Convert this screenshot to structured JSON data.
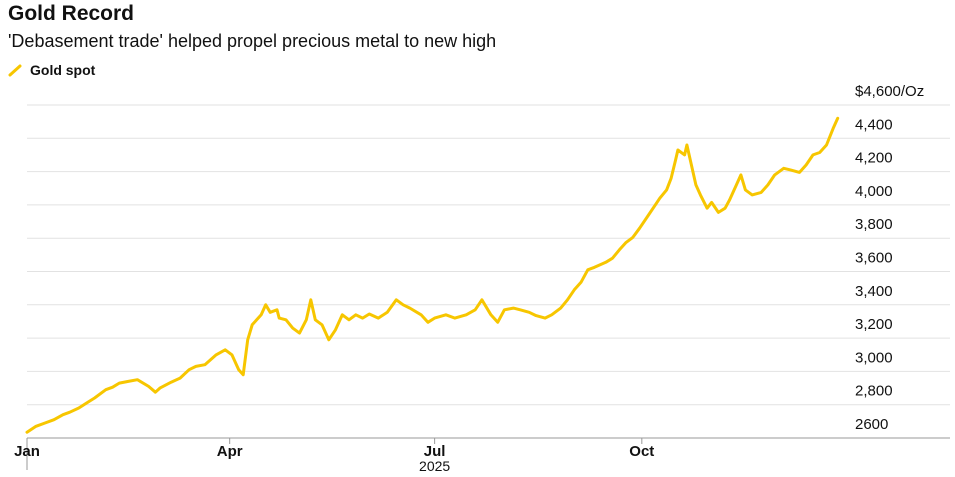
{
  "chart_data": {
    "type": "line",
    "title": "Gold Record",
    "subtitle": "'Debasement trade' helped propel precious metal to new high",
    "x_label": "2025",
    "xlim": [
      1,
      362
    ],
    "xticks": [
      {
        "value": 1,
        "label": "Jan"
      },
      {
        "value": 91,
        "label": "Apr"
      },
      {
        "value": 182,
        "label": "Jul"
      },
      {
        "value": 274,
        "label": "Oct"
      }
    ],
    "ylim": [
      2600,
      4600
    ],
    "yticks": [
      2600,
      {
        "value": 2800,
        "label": "2,800"
      },
      {
        "value": 3000,
        "label": "3,000"
      },
      {
        "value": 3200,
        "label": "3,200"
      },
      {
        "value": 3400,
        "label": "3,400"
      },
      {
        "value": 3600,
        "label": "3,600"
      },
      {
        "value": 3800,
        "label": "3,800"
      },
      {
        "value": 4000,
        "label": "4,000"
      },
      {
        "value": 4200,
        "label": "4,200"
      },
      {
        "value": 4400,
        "label": "4,400"
      },
      {
        "value": 4600,
        "label": "$4,600/Oz"
      }
    ],
    "grid": true,
    "legend": "top-left",
    "series": [
      {
        "name": "Gold spot",
        "color": "#f7c600",
        "x": [
          1,
          5,
          9,
          13,
          17,
          20,
          24,
          28,
          31,
          36,
          39,
          42,
          46,
          50,
          55,
          58,
          60,
          65,
          69,
          73,
          76,
          80,
          85,
          89,
          92,
          95,
          97,
          99,
          101,
          105,
          107,
          109,
          112,
          113,
          116,
          119,
          122,
          125,
          127,
          129,
          132,
          135,
          138,
          141,
          144,
          147,
          150,
          153,
          157,
          161,
          165,
          168,
          171,
          176,
          179,
          182,
          187,
          191,
          196,
          200,
          203,
          207,
          210,
          213,
          217,
          220,
          224,
          227,
          231,
          234,
          238,
          241,
          244,
          247,
          250,
          253,
          258,
          261,
          264,
          267,
          270,
          273,
          277,
          280,
          282,
          285,
          287,
          289,
          290,
          293,
          294,
          296,
          298,
          300,
          303,
          305,
          308,
          311,
          313,
          316,
          318,
          320,
          323,
          327,
          330,
          333,
          337,
          340,
          344,
          347,
          350,
          353,
          356,
          359,
          361
        ],
        "values": [
          2635,
          2670,
          2690,
          2710,
          2740,
          2755,
          2780,
          2815,
          2840,
          2890,
          2905,
          2930,
          2940,
          2950,
          2910,
          2875,
          2900,
          2935,
          2960,
          3010,
          3030,
          3040,
          3100,
          3130,
          3100,
          3010,
          2980,
          3190,
          3280,
          3340,
          3400,
          3355,
          3370,
          3320,
          3310,
          3260,
          3230,
          3310,
          3430,
          3310,
          3280,
          3190,
          3250,
          3340,
          3310,
          3340,
          3320,
          3345,
          3320,
          3355,
          3430,
          3400,
          3380,
          3340,
          3295,
          3320,
          3340,
          3320,
          3340,
          3370,
          3430,
          3340,
          3295,
          3370,
          3380,
          3370,
          3355,
          3335,
          3320,
          3340,
          3380,
          3430,
          3490,
          3535,
          3610,
          3625,
          3655,
          3680,
          3730,
          3775,
          3805,
          3860,
          3940,
          4000,
          4040,
          4090,
          4160,
          4270,
          4330,
          4300,
          4360,
          4240,
          4120,
          4060,
          3980,
          4015,
          3955,
          3980,
          4030,
          4120,
          4180,
          4090,
          4060,
          4075,
          4120,
          4180,
          4220,
          4210,
          4195,
          4240,
          4300,
          4315,
          4360,
          4460,
          4520
        ]
      }
    ]
  }
}
